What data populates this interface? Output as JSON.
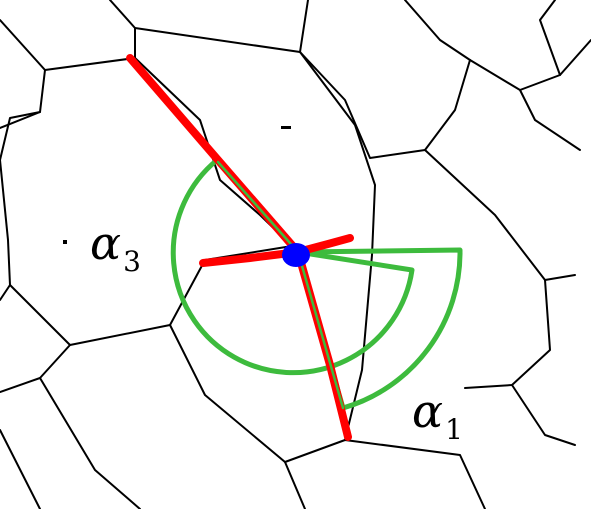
{
  "colors": {
    "background": "#ffffff",
    "cell_edges": "#000000",
    "red_path": "#ff0000",
    "green_sectors": "#3dbb3d",
    "center_point": "#0000ff"
  },
  "labels": {
    "alpha3": {
      "symbol": "α",
      "subscript": "3"
    },
    "alpha1": {
      "symbol": "α",
      "subscript": "1"
    }
  }
}
